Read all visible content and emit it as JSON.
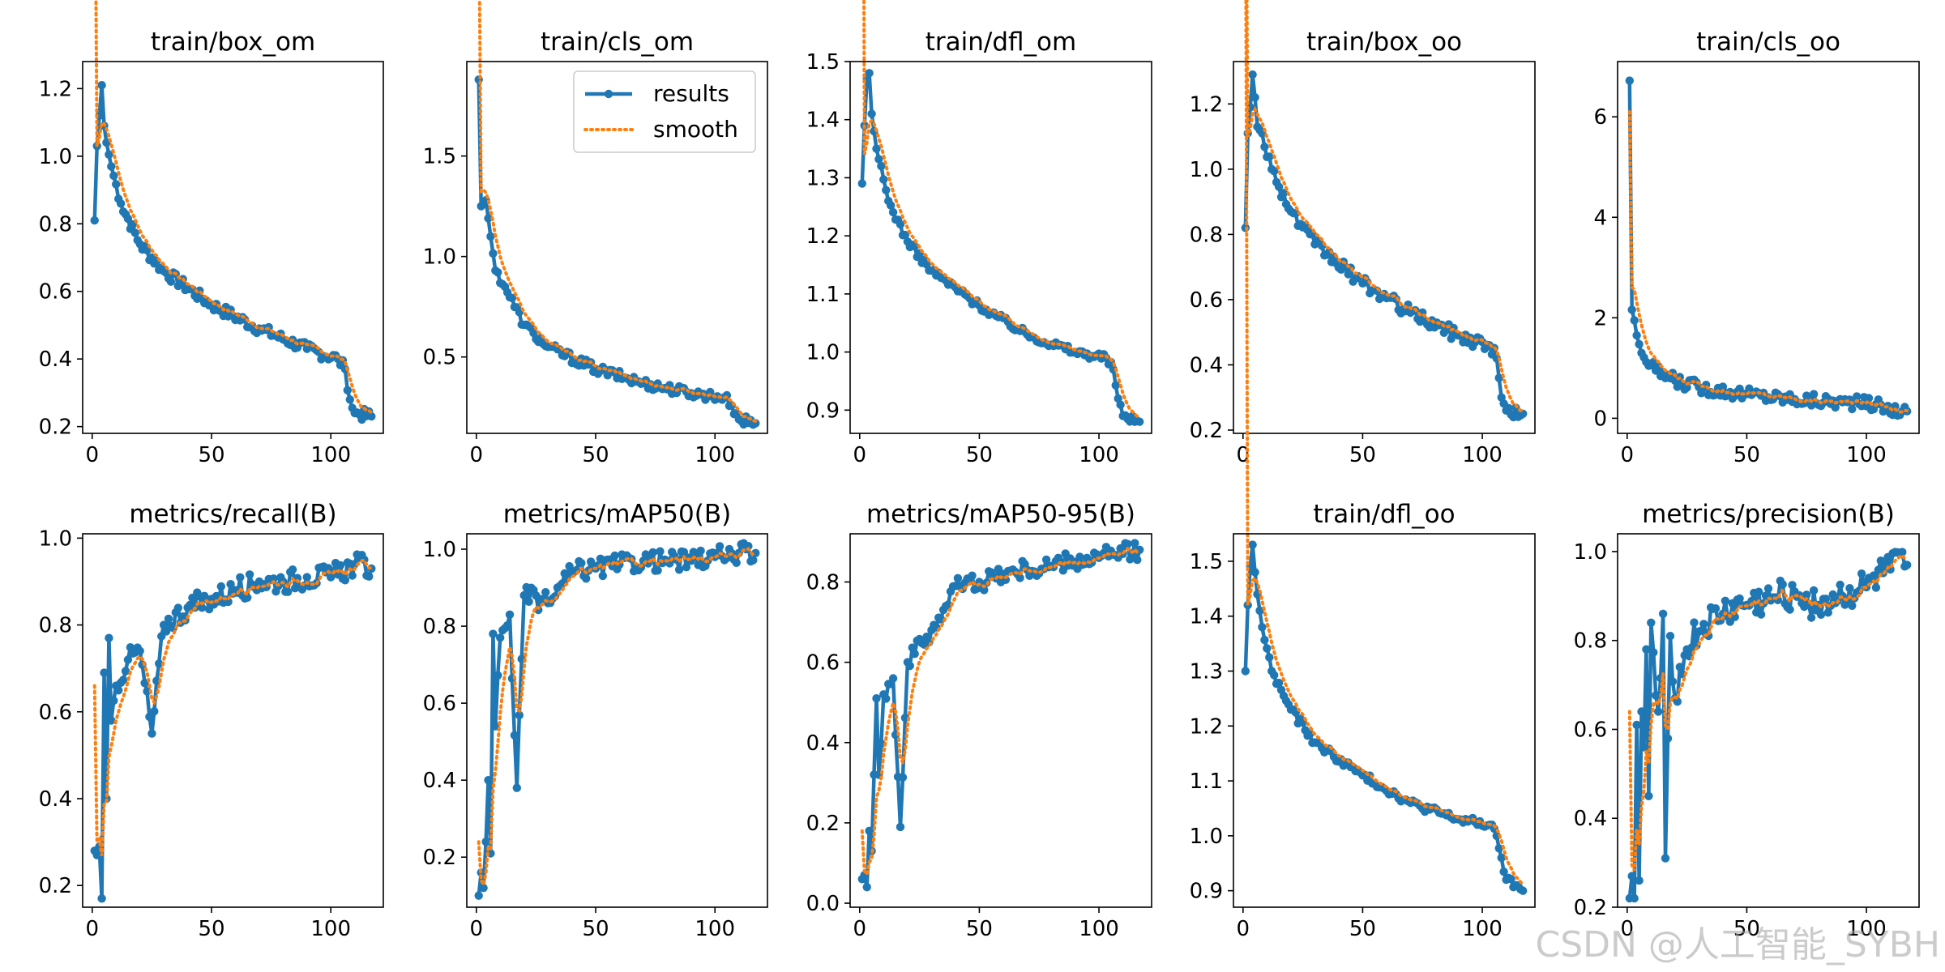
{
  "figure": {
    "legend": {
      "results_label": "results",
      "smooth_label": "smooth",
      "placement": "upper-right of train/cls_om"
    },
    "colors": {
      "results": "#1f77b4",
      "smooth": "#ff7f0e",
      "axis": "#000000",
      "background": "#ffffff"
    },
    "watermark": "CSDN @人工智能_SYBH"
  },
  "chart_data": [
    {
      "type": "line",
      "title": "train/box_om",
      "xlim": [
        -4,
        122
      ],
      "ylim": [
        0.18,
        1.28
      ],
      "xticks": [
        0,
        50,
        100
      ],
      "yticks": [
        0.2,
        0.4,
        0.6,
        0.8,
        1.0,
        1.2
      ],
      "xtick_labels": [
        "0",
        "50",
        "100"
      ],
      "ytick_labels": [
        "0.2",
        "0.4",
        "0.6",
        "0.8",
        "1.0",
        "1.2"
      ],
      "points": 117,
      "anchors": [
        [
          1,
          0.81
        ],
        [
          2,
          1.03
        ],
        [
          3,
          1.12
        ],
        [
          4,
          1.21
        ],
        [
          5,
          1.09
        ],
        [
          6,
          1.04
        ],
        [
          8,
          0.97
        ],
        [
          12,
          0.86
        ],
        [
          20,
          0.74
        ],
        [
          30,
          0.66
        ],
        [
          50,
          0.56
        ],
        [
          70,
          0.49
        ],
        [
          90,
          0.43
        ],
        [
          103,
          0.4
        ],
        [
          106,
          0.37
        ],
        [
          108,
          0.28
        ],
        [
          110,
          0.24
        ],
        [
          117,
          0.23
        ]
      ],
      "noise": 0.018,
      "smooth_start": 1.03
    },
    {
      "type": "line",
      "title": "train/cls_om",
      "xlim": [
        -4,
        122
      ],
      "ylim": [
        0.12,
        1.97
      ],
      "xticks": [
        0,
        50,
        100
      ],
      "yticks": [
        0.5,
        1.0,
        1.5
      ],
      "xtick_labels": [
        "0",
        "50",
        "100"
      ],
      "ytick_labels": [
        "0.5",
        "1.0",
        "1.5"
      ],
      "points": 117,
      "anchors": [
        [
          1,
          1.88
        ],
        [
          2,
          1.25
        ],
        [
          4,
          1.28
        ],
        [
          6,
          1.1
        ],
        [
          8,
          0.93
        ],
        [
          12,
          0.85
        ],
        [
          20,
          0.66
        ],
        [
          30,
          0.55
        ],
        [
          50,
          0.44
        ],
        [
          70,
          0.37
        ],
        [
          90,
          0.32
        ],
        [
          104,
          0.3
        ],
        [
          107,
          0.26
        ],
        [
          110,
          0.19
        ],
        [
          117,
          0.17
        ]
      ],
      "noise": 0.015,
      "smooth_start": 1.4,
      "legend": true
    },
    {
      "type": "line",
      "title": "train/dfl_om",
      "xlim": [
        -4,
        122
      ],
      "ylim": [
        0.86,
        1.5
      ],
      "xticks": [
        0,
        50,
        100
      ],
      "yticks": [
        0.9,
        1.0,
        1.1,
        1.2,
        1.3,
        1.4,
        1.5
      ],
      "xtick_labels": [
        "0",
        "50",
        "100"
      ],
      "ytick_labels": [
        "0.9",
        "1.0",
        "1.1",
        "1.2",
        "1.3",
        "1.4",
        "1.5"
      ],
      "points": 117,
      "anchors": [
        [
          1,
          1.29
        ],
        [
          2,
          1.39
        ],
        [
          3,
          1.47
        ],
        [
          4,
          1.48
        ],
        [
          5,
          1.41
        ],
        [
          7,
          1.35
        ],
        [
          12,
          1.26
        ],
        [
          20,
          1.19
        ],
        [
          30,
          1.14
        ],
        [
          50,
          1.08
        ],
        [
          70,
          1.03
        ],
        [
          90,
          1.0
        ],
        [
          103,
          0.99
        ],
        [
          106,
          0.97
        ],
        [
          108,
          0.92
        ],
        [
          110,
          0.89
        ],
        [
          117,
          0.88
        ]
      ],
      "noise": 0.012,
      "smooth_start": 1.29
    },
    {
      "type": "line",
      "title": "train/box_oo",
      "xlim": [
        -4,
        122
      ],
      "ylim": [
        0.19,
        1.33
      ],
      "xticks": [
        0,
        50,
        100
      ],
      "yticks": [
        0.2,
        0.4,
        0.6,
        0.8,
        1.0,
        1.2
      ],
      "xtick_labels": [
        "0",
        "50",
        "100"
      ],
      "ytick_labels": [
        "0.2",
        "0.4",
        "0.6",
        "0.8",
        "1.0",
        "1.2"
      ],
      "points": 117,
      "anchors": [
        [
          1,
          0.82
        ],
        [
          2,
          1.11
        ],
        [
          3,
          1.19
        ],
        [
          4,
          1.29
        ],
        [
          5,
          1.22
        ],
        [
          6,
          1.13
        ],
        [
          8,
          1.11
        ],
        [
          12,
          1.0
        ],
        [
          20,
          0.87
        ],
        [
          30,
          0.77
        ],
        [
          50,
          0.65
        ],
        [
          70,
          0.56
        ],
        [
          90,
          0.49
        ],
        [
          103,
          0.46
        ],
        [
          106,
          0.42
        ],
        [
          108,
          0.3
        ],
        [
          110,
          0.26
        ],
        [
          117,
          0.25
        ]
      ],
      "noise": 0.02,
      "smooth_start": 1.09
    },
    {
      "type": "line",
      "title": "train/cls_oo",
      "xlim": [
        -4,
        122
      ],
      "ylim": [
        -0.3,
        7.1
      ],
      "xticks": [
        0,
        50,
        100
      ],
      "yticks": [
        0,
        2,
        4,
        6
      ],
      "xtick_labels": [
        "0",
        "50",
        "100"
      ],
      "ytick_labels": [
        "0",
        "2",
        "4",
        "6"
      ],
      "points": 117,
      "anchors": [
        [
          1,
          6.72
        ],
        [
          2,
          2.16
        ],
        [
          3,
          1.95
        ],
        [
          4,
          1.65
        ],
        [
          6,
          1.3
        ],
        [
          8,
          1.12
        ],
        [
          12,
          0.95
        ],
        [
          20,
          0.75
        ],
        [
          30,
          0.62
        ],
        [
          50,
          0.48
        ],
        [
          70,
          0.38
        ],
        [
          90,
          0.32
        ],
        [
          104,
          0.28
        ],
        [
          108,
          0.18
        ],
        [
          117,
          0.14
        ]
      ],
      "noise": 0.02,
      "smooth_start": 3.05
    },
    {
      "type": "line",
      "title": "metrics/recall(B)",
      "xlim": [
        -4,
        122
      ],
      "ylim": [
        0.15,
        1.01
      ],
      "xticks": [
        0,
        50,
        100
      ],
      "yticks": [
        0.2,
        0.4,
        0.6,
        0.8,
        1.0
      ],
      "xtick_labels": [
        "0",
        "50",
        "100"
      ],
      "ytick_labels": [
        "0.2",
        "0.4",
        "0.6",
        "0.8",
        "1.0"
      ],
      "points": 117,
      "anchors": [
        [
          1,
          0.28
        ],
        [
          2,
          0.27
        ],
        [
          3,
          0.29
        ],
        [
          4,
          0.17
        ],
        [
          5,
          0.69
        ],
        [
          6,
          0.4
        ],
        [
          7,
          0.77
        ],
        [
          8,
          0.58
        ],
        [
          10,
          0.66
        ],
        [
          15,
          0.72
        ],
        [
          20,
          0.74
        ],
        [
          25,
          0.55
        ],
        [
          30,
          0.8
        ],
        [
          40,
          0.84
        ],
        [
          50,
          0.86
        ],
        [
          60,
          0.88
        ],
        [
          70,
          0.9
        ],
        [
          80,
          0.9
        ],
        [
          90,
          0.91
        ],
        [
          100,
          0.91
        ],
        [
          110,
          0.94
        ],
        [
          117,
          0.93
        ]
      ],
      "noise": 0.035,
      "smooth_start": 0.33
    },
    {
      "type": "line",
      "title": "metrics/mAP50(B)",
      "xlim": [
        -4,
        122
      ],
      "ylim": [
        0.07,
        1.04
      ],
      "xticks": [
        0,
        50,
        100
      ],
      "yticks": [
        0.2,
        0.4,
        0.6,
        0.8,
        1.0
      ],
      "xtick_labels": [
        "0",
        "50",
        "100"
      ],
      "ytick_labels": [
        "0.2",
        "0.4",
        "0.6",
        "0.8",
        "1.0"
      ],
      "points": 117,
      "anchors": [
        [
          1,
          0.1
        ],
        [
          2,
          0.16
        ],
        [
          3,
          0.12
        ],
        [
          4,
          0.24
        ],
        [
          5,
          0.4
        ],
        [
          6,
          0.21
        ],
        [
          7,
          0.78
        ],
        [
          8,
          0.54
        ],
        [
          10,
          0.77
        ],
        [
          14,
          0.83
        ],
        [
          17,
          0.38
        ],
        [
          20,
          0.88
        ],
        [
          30,
          0.86
        ],
        [
          40,
          0.94
        ],
        [
          50,
          0.95
        ],
        [
          60,
          0.96
        ],
        [
          70,
          0.97
        ],
        [
          80,
          0.97
        ],
        [
          90,
          0.97
        ],
        [
          100,
          0.98
        ],
        [
          110,
          0.99
        ],
        [
          117,
          0.99
        ]
      ],
      "noise": 0.03,
      "smooth_start": 0.12
    },
    {
      "type": "line",
      "title": "metrics/mAP50-95(B)",
      "xlim": [
        -4,
        122
      ],
      "ylim": [
        -0.01,
        0.92
      ],
      "xticks": [
        0,
        50,
        100
      ],
      "yticks": [
        0.0,
        0.2,
        0.4,
        0.6,
        0.8
      ],
      "xtick_labels": [
        "0",
        "50",
        "100"
      ],
      "ytick_labels": [
        "0.0",
        "0.2",
        "0.4",
        "0.6",
        "0.8"
      ],
      "points": 117,
      "anchors": [
        [
          1,
          0.06
        ],
        [
          2,
          0.07
        ],
        [
          3,
          0.04
        ],
        [
          4,
          0.18
        ],
        [
          5,
          0.13
        ],
        [
          7,
          0.51
        ],
        [
          8,
          0.32
        ],
        [
          10,
          0.52
        ],
        [
          14,
          0.56
        ],
        [
          17,
          0.19
        ],
        [
          20,
          0.6
        ],
        [
          30,
          0.68
        ],
        [
          36,
          0.74
        ],
        [
          40,
          0.79
        ],
        [
          50,
          0.8
        ],
        [
          60,
          0.82
        ],
        [
          70,
          0.83
        ],
        [
          80,
          0.84
        ],
        [
          90,
          0.85
        ],
        [
          100,
          0.86
        ],
        [
          110,
          0.87
        ],
        [
          117,
          0.88
        ]
      ],
      "noise": 0.03,
      "smooth_start": 0.09
    },
    {
      "type": "line",
      "title": "train/dfl_oo",
      "xlim": [
        -4,
        122
      ],
      "ylim": [
        0.87,
        1.55
      ],
      "xticks": [
        0,
        50,
        100
      ],
      "yticks": [
        0.9,
        1.0,
        1.1,
        1.2,
        1.3,
        1.4,
        1.5
      ],
      "xtick_labels": [
        "0",
        "50",
        "100"
      ],
      "ytick_labels": [
        "0.9",
        "1.0",
        "1.1",
        "1.2",
        "1.3",
        "1.4",
        "1.5"
      ],
      "points": 117,
      "anchors": [
        [
          1,
          1.3
        ],
        [
          2,
          1.42
        ],
        [
          3,
          1.49
        ],
        [
          4,
          1.53
        ],
        [
          5,
          1.48
        ],
        [
          6,
          1.44
        ],
        [
          8,
          1.38
        ],
        [
          12,
          1.3
        ],
        [
          20,
          1.23
        ],
        [
          30,
          1.17
        ],
        [
          50,
          1.11
        ],
        [
          70,
          1.06
        ],
        [
          90,
          1.03
        ],
        [
          103,
          1.02
        ],
        [
          106,
          1.0
        ],
        [
          108,
          0.96
        ],
        [
          110,
          0.92
        ],
        [
          117,
          0.9
        ]
      ],
      "noise": 0.012,
      "smooth_start": 1.42
    },
    {
      "type": "line",
      "title": "metrics/precision(B)",
      "xlim": [
        -4,
        122
      ],
      "ylim": [
        0.2,
        1.04
      ],
      "xticks": [
        0,
        50,
        100
      ],
      "yticks": [
        0.2,
        0.4,
        0.6,
        0.8,
        1.0
      ],
      "xtick_labels": [
        "0",
        "50",
        "100"
      ],
      "ytick_labels": [
        "0.2",
        "0.4",
        "0.6",
        "0.8",
        "1.0"
      ],
      "points": 117,
      "anchors": [
        [
          1,
          0.22
        ],
        [
          2,
          0.27
        ],
        [
          3,
          0.22
        ],
        [
          4,
          0.61
        ],
        [
          5,
          0.26
        ],
        [
          6,
          0.64
        ],
        [
          7,
          0.56
        ],
        [
          8,
          0.78
        ],
        [
          9,
          0.45
        ],
        [
          10,
          0.84
        ],
        [
          13,
          0.64
        ],
        [
          15,
          0.86
        ],
        [
          16,
          0.31
        ],
        [
          18,
          0.81
        ],
        [
          20,
          0.67
        ],
        [
          25,
          0.78
        ],
        [
          30,
          0.82
        ],
        [
          40,
          0.86
        ],
        [
          50,
          0.88
        ],
        [
          60,
          0.89
        ],
        [
          70,
          0.91
        ],
        [
          80,
          0.88
        ],
        [
          90,
          0.9
        ],
        [
          100,
          0.92
        ],
        [
          110,
          0.96
        ],
        [
          117,
          0.97
        ]
      ],
      "noise": 0.05,
      "smooth_start": 0.32
    }
  ]
}
